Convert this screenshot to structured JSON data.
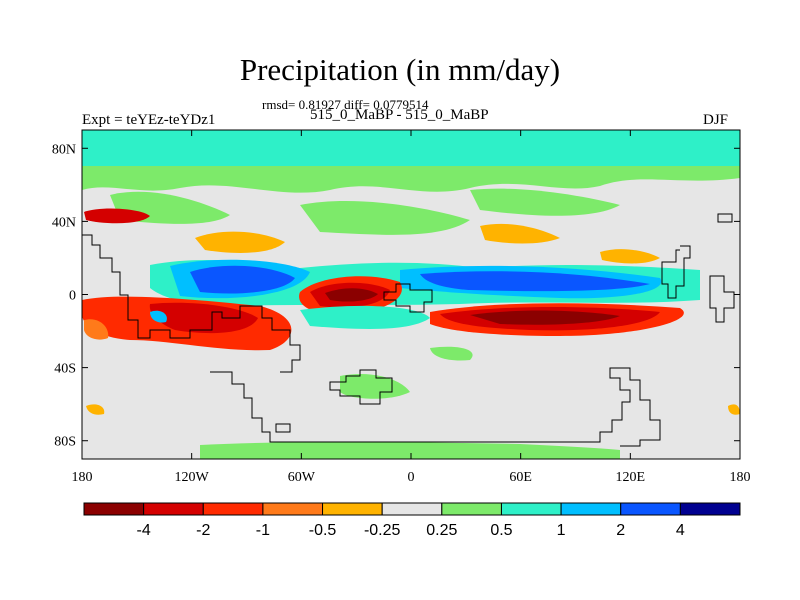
{
  "chart_data": {
    "type": "heatmap",
    "title": "Precipitation (in mm/day)",
    "stats_line": "rmsd= 0.81927 diff= 0.0779514",
    "case_label": "515_0_MaBP - 515_0_MaBP",
    "left_label": "Expt = teYEz-teYDz1",
    "right_label": "DJF",
    "x_ticks": [
      "180",
      "120W",
      "60W",
      "0",
      "60E",
      "120E",
      "180"
    ],
    "y_ticks": [
      "80N",
      "40N",
      "0",
      "40S",
      "80S"
    ],
    "xlim": [
      -180,
      180
    ],
    "ylim": [
      -90,
      90
    ],
    "colorbar": {
      "labels": [
        "-4",
        "-2",
        "-1",
        "-0.5",
        "-0.25",
        "0.25",
        "0.5",
        "1",
        "2",
        "4"
      ],
      "colors": [
        "#8b0000",
        "#d40000",
        "#ff2a00",
        "#ff7a1a",
        "#ffb300",
        "#e6e6e6",
        "#7dea6a",
        "#2ef0c8",
        "#00bfff",
        "#0a56ff",
        "#000090"
      ]
    },
    "background_level": "-0.25 to 0.25",
    "notable_regions": [
      {
        "level": "1",
        "description": "zonal band north of 70N"
      },
      {
        "level": "2",
        "description": "eastern Pacific, about 140W-100W, 0-10N"
      },
      {
        "level": "-4",
        "description": "tropical Atlantic, about 55W-20W, 0-8N"
      },
      {
        "level": "-4",
        "description": "south Indian Ocean, about 30E-110E, 10S-20S"
      },
      {
        "level": "-2",
        "description": "South Pacific, about 175W-80W, 10S-30S"
      },
      {
        "level": "2",
        "description": "north Indian Ocean to west Pacific band, about 0-12N"
      }
    ]
  }
}
